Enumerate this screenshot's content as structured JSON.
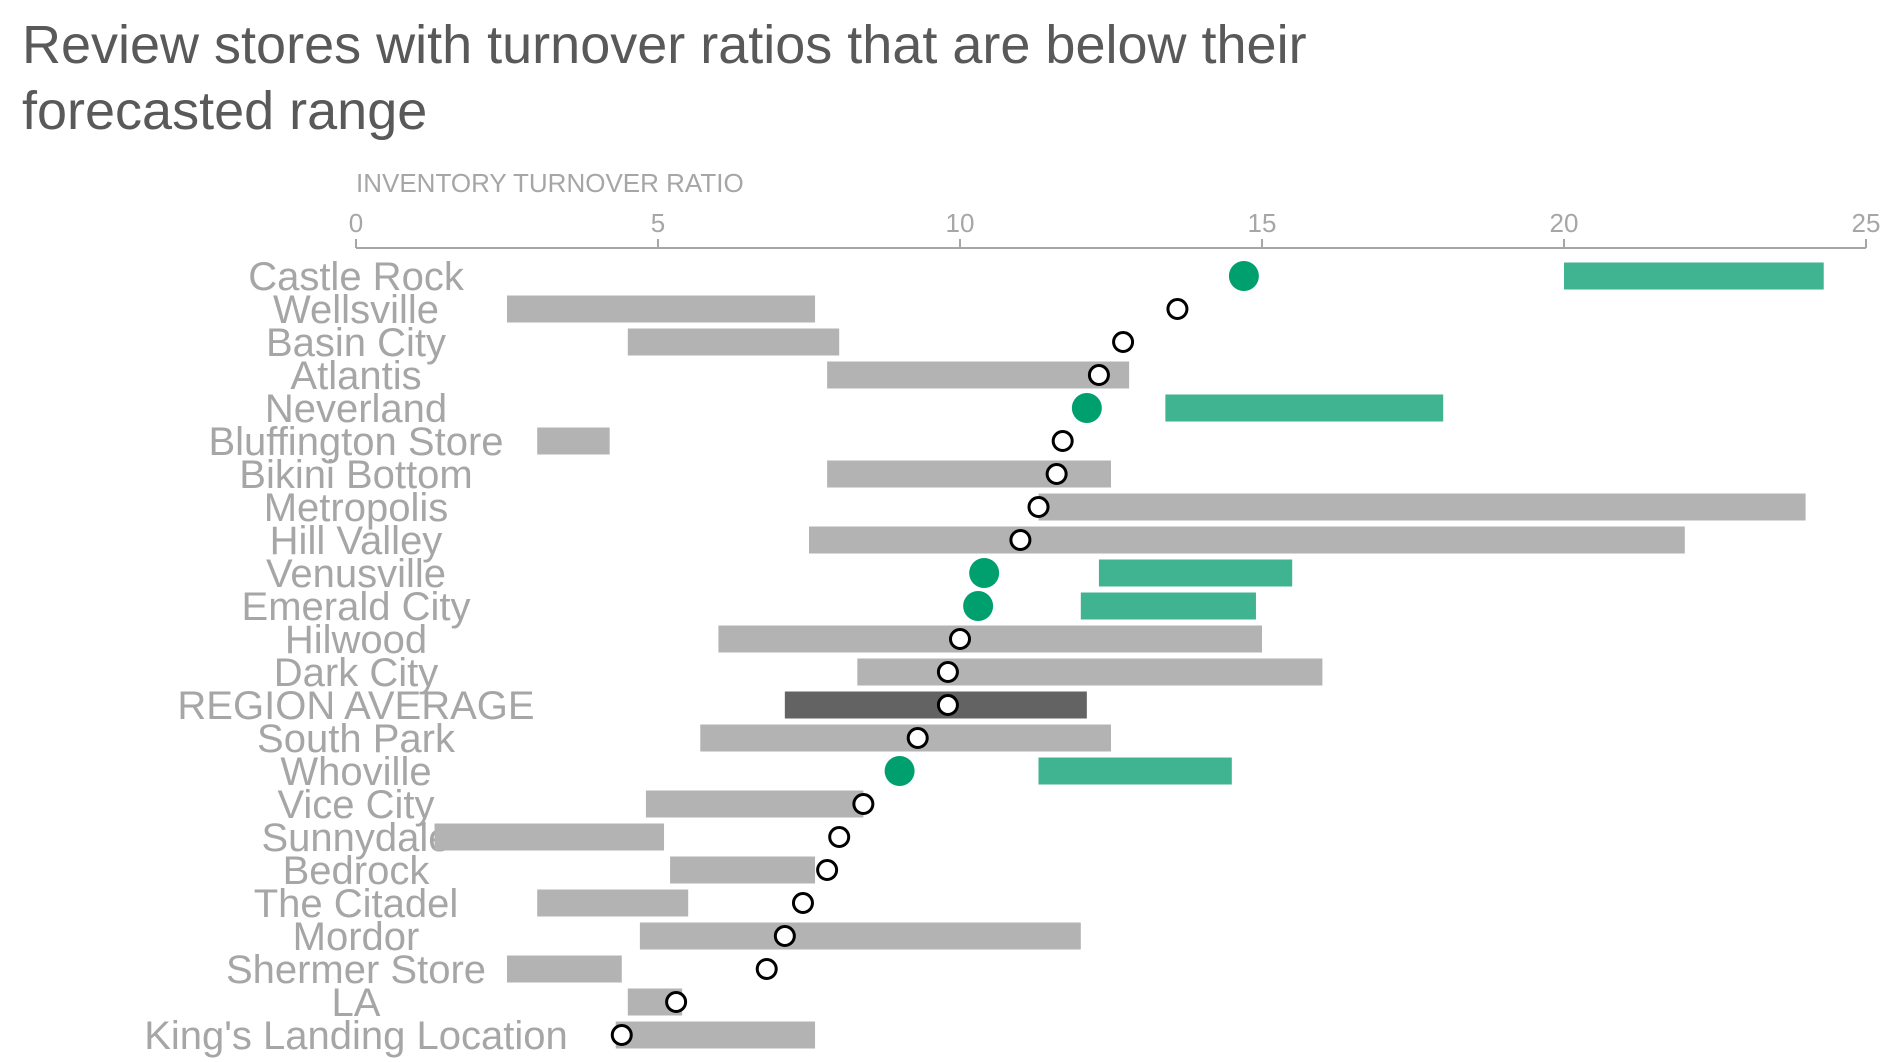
{
  "title_line1": "Review stores with turnover ratios that are below their",
  "title_line2": "forecasted range",
  "colors": {
    "range_default": "#b3b3b3",
    "range_highlight": "#40b391",
    "range_average": "#636363",
    "dot_highlight": "#00a06e",
    "dot_default_fill": "#ffffff",
    "dot_default_stroke": "#000000",
    "axis": "#a6a6a6",
    "text": "#a6a6a6"
  },
  "chart_data": {
    "type": "dot-range",
    "title": "Review stores with turnover ratios that are below their forecasted range",
    "xlabel": "INVENTORY TURNOVER RATIO",
    "xlim": [
      0,
      25
    ],
    "xticks": [
      "0",
      "5",
      "10",
      "15",
      "20",
      "25"
    ],
    "xtick_values": [
      0,
      5,
      10,
      15,
      20,
      25
    ],
    "axis_position": "top",
    "grid": false,
    "stores": [
      {
        "name": "Castle Rock",
        "actual": 14.7,
        "range": [
          20.0,
          24.3
        ],
        "highlight": true
      },
      {
        "name": "Wellsville",
        "actual": 13.6,
        "range": [
          2.5,
          7.6
        ],
        "highlight": false
      },
      {
        "name": "Basin City",
        "actual": 12.7,
        "range": [
          4.5,
          8.0
        ],
        "highlight": false
      },
      {
        "name": "Atlantis",
        "actual": 12.3,
        "range": [
          7.8,
          12.8
        ],
        "highlight": false
      },
      {
        "name": "Neverland",
        "actual": 12.1,
        "range": [
          13.4,
          18.0
        ],
        "highlight": true
      },
      {
        "name": "Bluffington Store",
        "actual": 11.7,
        "range": [
          3.0,
          4.2
        ],
        "highlight": false
      },
      {
        "name": "Bikini Bottom",
        "actual": 11.6,
        "range": [
          7.8,
          12.5
        ],
        "highlight": false
      },
      {
        "name": "Metropolis",
        "actual": 11.3,
        "range": [
          11.3,
          24.0
        ],
        "highlight": false
      },
      {
        "name": "Hill Valley",
        "actual": 11.0,
        "range": [
          7.5,
          22.0
        ],
        "highlight": false
      },
      {
        "name": "Venusville",
        "actual": 10.4,
        "range": [
          12.3,
          15.5
        ],
        "highlight": true
      },
      {
        "name": "Emerald City",
        "actual": 10.3,
        "range": [
          12.0,
          14.9
        ],
        "highlight": true
      },
      {
        "name": "Hilwood",
        "actual": 10.0,
        "range": [
          6.0,
          15.0
        ],
        "highlight": false
      },
      {
        "name": "Dark City",
        "actual": 9.8,
        "range": [
          8.3,
          16.0
        ],
        "highlight": false
      },
      {
        "name": "REGION AVERAGE",
        "actual": 9.8,
        "range": [
          7.1,
          12.1
        ],
        "highlight": false,
        "average": true
      },
      {
        "name": "South Park",
        "actual": 9.3,
        "range": [
          5.7,
          12.5
        ],
        "highlight": false
      },
      {
        "name": "Whoville",
        "actual": 9.0,
        "range": [
          11.3,
          14.5
        ],
        "highlight": true
      },
      {
        "name": "Vice City",
        "actual": 8.4,
        "range": [
          4.8,
          8.4
        ],
        "highlight": false
      },
      {
        "name": "Sunnydale",
        "actual": 8.0,
        "range": [
          1.3,
          5.1
        ],
        "highlight": false
      },
      {
        "name": "Bedrock",
        "actual": 7.8,
        "range": [
          5.2,
          7.6
        ],
        "highlight": false
      },
      {
        "name": "The Citadel",
        "actual": 7.4,
        "range": [
          3.0,
          5.5
        ],
        "highlight": false
      },
      {
        "name": "Mordor",
        "actual": 7.1,
        "range": [
          4.7,
          12.0
        ],
        "highlight": false
      },
      {
        "name": "Shermer Store",
        "actual": 6.8,
        "range": [
          2.5,
          4.4
        ],
        "highlight": false
      },
      {
        "name": "LA",
        "actual": 5.3,
        "range": [
          4.5,
          5.4
        ],
        "highlight": false
      },
      {
        "name": "King's Landing Location",
        "actual": 4.4,
        "range": [
          4.3,
          7.6
        ],
        "highlight": false
      }
    ]
  }
}
